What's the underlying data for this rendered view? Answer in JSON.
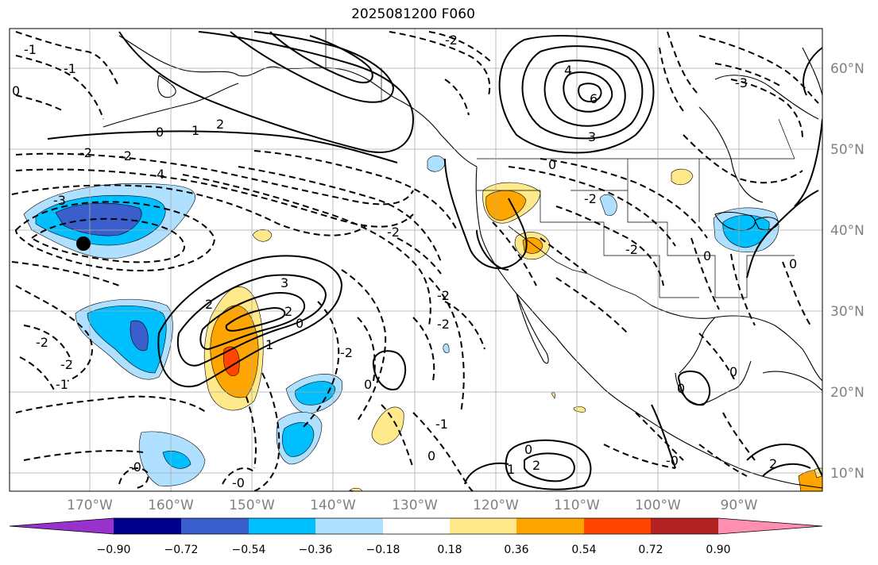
{
  "title": "2025081200 F060",
  "lat_labels": [
    "60°N",
    "50°N",
    "40°N",
    "30°N",
    "20°N",
    "10°N"
  ],
  "lon_labels": [
    "170°W",
    "160°W",
    "150°W",
    "140°W",
    "130°W",
    "120°W",
    "110°W",
    "100°W",
    "90°W"
  ],
  "colorbar": {
    "ticks": [
      "−0.90",
      "−0.72",
      "−0.54",
      "−0.36",
      "−0.18",
      "0.18",
      "0.36",
      "0.54",
      "0.72",
      "0.90"
    ],
    "colors": [
      "#9932cc",
      "#00008b",
      "#3a5fcd",
      "#00bfff",
      "#b0e0ff",
      "#ffffff",
      "#ffe98a",
      "#ffa500",
      "#ff4500",
      "#b22222",
      "#ff8fb0"
    ]
  },
  "contour_labels": [
    "0",
    "1",
    "2",
    "-2",
    "-2",
    "-1",
    "-1",
    "4",
    "-3",
    "-2",
    "3",
    "2",
    "2",
    "1",
    "0",
    "-2",
    "-2",
    "4",
    "6",
    "3",
    "-2",
    "-2",
    "-2",
    "-3",
    "0",
    "0",
    "-2",
    "-1",
    "0",
    "-1",
    "2",
    "0",
    "-2",
    "0",
    "0",
    "0",
    "0",
    "-2",
    "-0",
    "-0",
    "2",
    "1",
    "0",
    "-0"
  ]
}
